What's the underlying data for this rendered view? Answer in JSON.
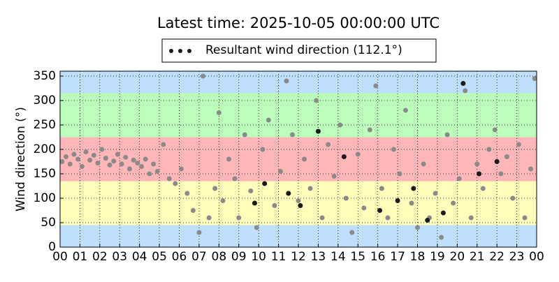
{
  "chart_data": {
    "type": "scatter",
    "title": "Latest time: 2025-10-05 00:00:00 UTC",
    "y_label": "Wind direction (°)",
    "xlim": [
      0,
      24
    ],
    "ylim": [
      0,
      360
    ],
    "xticks": [
      {
        "value": 0,
        "label": "00"
      },
      {
        "value": 1,
        "label": "01"
      },
      {
        "value": 2,
        "label": "02"
      },
      {
        "value": 3,
        "label": "03"
      },
      {
        "value": 4,
        "label": "04"
      },
      {
        "value": 5,
        "label": "05"
      },
      {
        "value": 6,
        "label": "06"
      },
      {
        "value": 7,
        "label": "07"
      },
      {
        "value": 8,
        "label": "08"
      },
      {
        "value": 9,
        "label": "09"
      },
      {
        "value": 10,
        "label": "10"
      },
      {
        "value": 11,
        "label": "11"
      },
      {
        "value": 12,
        "label": "12"
      },
      {
        "value": 13,
        "label": "13"
      },
      {
        "value": 14,
        "label": "14"
      },
      {
        "value": 15,
        "label": "15"
      },
      {
        "value": 16,
        "label": "16"
      },
      {
        "value": 17,
        "label": "17"
      },
      {
        "value": 18,
        "label": "18"
      },
      {
        "value": 19,
        "label": "19"
      },
      {
        "value": 20,
        "label": "20"
      },
      {
        "value": 21,
        "label": "21"
      },
      {
        "value": 22,
        "label": "22"
      },
      {
        "value": 23,
        "label": "23"
      },
      {
        "value": 24,
        "label": "00"
      }
    ],
    "yticks": [
      0,
      50,
      100,
      150,
      200,
      250,
      300,
      350
    ],
    "grid": true,
    "bands": [
      {
        "from": 0,
        "to": 45,
        "color": "#bfdfff"
      },
      {
        "from": 45,
        "to": 135,
        "color": "#ffffbb"
      },
      {
        "from": 135,
        "to": 225,
        "color": "#ffb6b9"
      },
      {
        "from": 225,
        "to": 315,
        "color": "#bbffbb"
      },
      {
        "from": 315,
        "to": 360,
        "color": "#bfdfff"
      }
    ],
    "series": [
      {
        "name": "Resultant wind direction (112.1°)",
        "color": "#1a1a1a",
        "x": [
          9.8,
          10.3,
          11.5,
          12.1,
          13.0,
          14.3,
          16.1,
          17.0,
          17.8,
          18.5,
          19.3,
          20.3,
          21.1,
          22.0
        ],
        "values": [
          90,
          130,
          110,
          85,
          237,
          185,
          75,
          95,
          120,
          55,
          70,
          335,
          150,
          175
        ]
      },
      {
        "color": "#8a8a8a",
        "x": [
          0.1,
          0.3,
          0.5,
          0.7,
          0.9,
          1.1,
          1.3,
          1.5,
          1.7,
          1.9,
          2.1,
          2.3,
          2.5,
          2.7,
          2.9,
          3.1,
          3.3,
          3.5,
          3.7,
          3.9,
          4.1,
          4.3,
          4.5,
          4.7,
          4.9,
          5.2,
          5.5,
          5.8,
          6.1,
          6.4,
          6.7,
          7.0,
          7.2,
          7.5,
          7.8,
          8.0,
          8.2,
          8.5,
          8.8,
          9.0,
          9.3,
          9.6,
          9.9,
          10.2,
          10.5,
          10.8,
          11.1,
          11.4,
          11.7,
          12.0,
          12.3,
          12.6,
          12.9,
          13.2,
          13.5,
          13.8,
          14.1,
          14.4,
          14.7,
          15.0,
          15.3,
          15.6,
          15.9,
          16.2,
          16.5,
          16.8,
          17.1,
          17.4,
          17.7,
          18.0,
          18.3,
          18.6,
          18.9,
          19.2,
          19.5,
          19.8,
          20.1,
          20.4,
          20.7,
          21.0,
          21.3,
          21.6,
          21.9,
          22.2,
          22.5,
          22.8,
          23.1,
          23.4,
          23.7,
          23.9
        ],
        "values": [
          175,
          185,
          170,
          190,
          180,
          165,
          195,
          178,
          188,
          172,
          200,
          182,
          168,
          176,
          190,
          170,
          184,
          160,
          178,
          172,
          165,
          180,
          150,
          170,
          155,
          210,
          140,
          130,
          160,
          110,
          75,
          30,
          350,
          60,
          120,
          275,
          95,
          180,
          140,
          60,
          230,
          115,
          40,
          200,
          260,
          85,
          155,
          340,
          230,
          95,
          180,
          120,
          300,
          60,
          210,
          145,
          250,
          100,
          30,
          190,
          80,
          240,
          330,
          120,
          60,
          200,
          150,
          280,
          90,
          40,
          170,
          60,
          110,
          20,
          230,
          90,
          140,
          320,
          60,
          170,
          120,
          200,
          240,
          150,
          185,
          100,
          210,
          60,
          160,
          345
        ]
      }
    ]
  }
}
